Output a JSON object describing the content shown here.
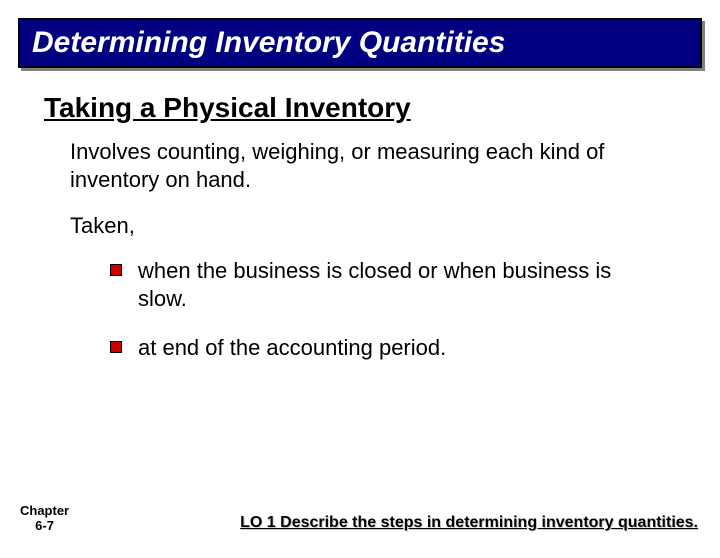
{
  "title": "Determining Inventory Quantities",
  "subheading": "Taking a Physical Inventory",
  "intro": "Involves counting, weighing, or measuring each kind of inventory on hand.",
  "taken_label": "Taken,",
  "bullets": [
    "when the business is closed or when business is slow.",
    "at end of the accounting period."
  ],
  "footer_chapter_line1": "Chapter",
  "footer_chapter_line2": "6-7",
  "footer_lo": "LO 1 Describe the steps in determining inventory quantities.",
  "colors": {
    "banner_bg": "#000080",
    "banner_text": "#ffffff",
    "bullet_fill": "#cc0000",
    "text": "#000000",
    "background": "#ffffff"
  },
  "typography": {
    "title_fontsize": 30,
    "subheading_fontsize": 28,
    "body_fontsize": 22,
    "footer_left_fontsize": 13,
    "footer_right_fontsize": 16,
    "font_family": "Comic Sans MS"
  }
}
